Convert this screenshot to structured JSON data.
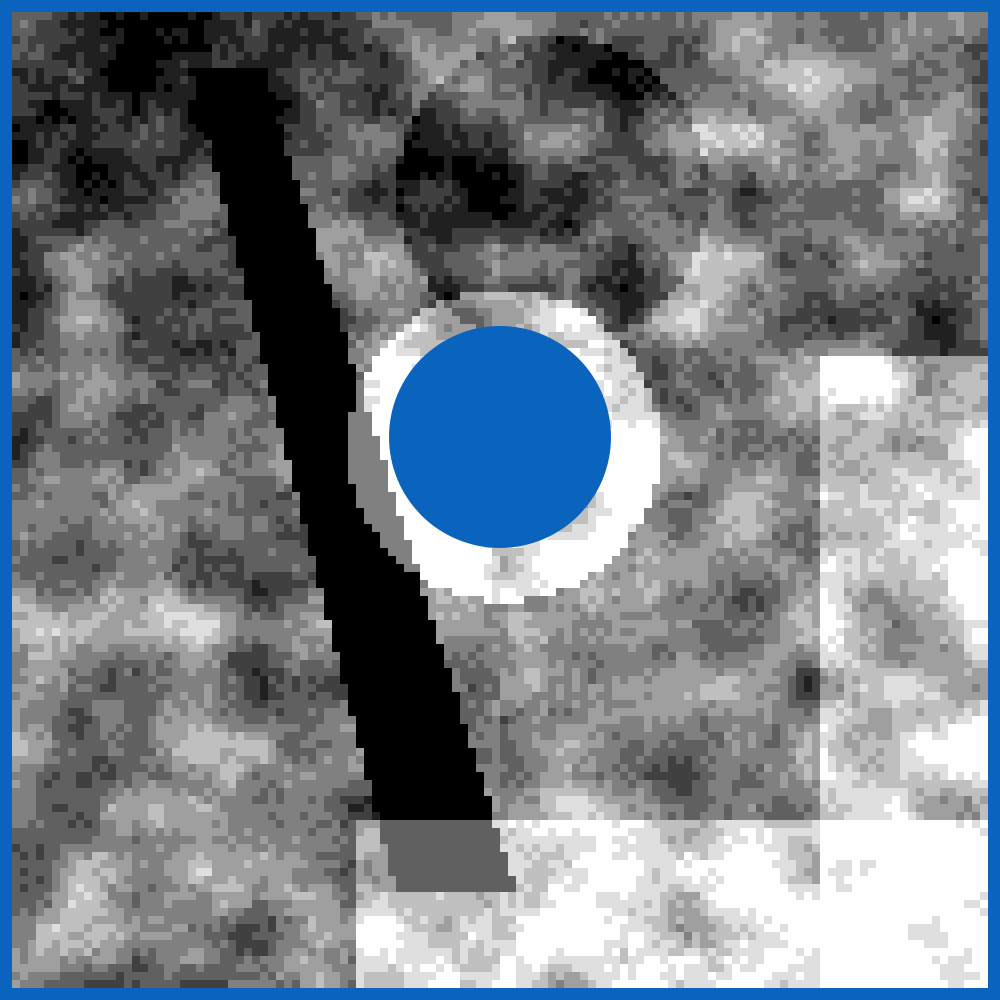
{
  "colors": {
    "frame": "#0a64be",
    "marker": "#0a64be",
    "background": "#ffffff"
  },
  "icons": {
    "marker": "circle-marker-icon"
  }
}
